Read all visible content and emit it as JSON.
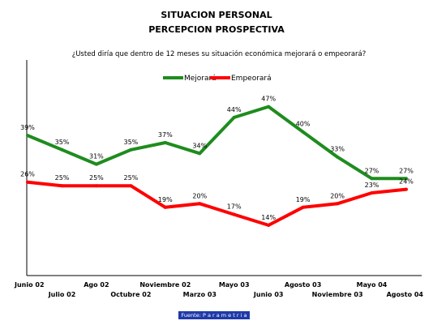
{
  "chart_data": {
    "type": "line",
    "title_lines": [
      "SITUACION PERSONAL",
      "PERCEPCION PROSPECTIVA"
    ],
    "subtitle": "¿Usted diría que dentro de 12 meses su situación económica mejorará o empeorará?",
    "categories": [
      "Junio 02",
      "Julio 02",
      "Ago 02",
      "Octubre 02",
      "Noviembre 02",
      "Marzo 03",
      "Mayo 03",
      "Junio 03",
      "Agosto 03",
      "Noviembre 03",
      "Mayo 04",
      "Agosto 04"
    ],
    "series": [
      {
        "name": "Mejorará",
        "color": "#1e8c1e",
        "values": [
          39,
          35,
          31,
          35,
          37,
          34,
          44,
          47,
          40,
          33,
          27,
          27
        ],
        "labels": [
          "39%",
          "35%",
          "31%",
          "35%",
          "37%",
          "34%",
          "44%",
          "47%",
          "40%",
          "33%",
          "27%",
          "27%"
        ]
      },
      {
        "name": "Empeorará",
        "color": "#ff0000",
        "values": [
          26,
          25,
          25,
          25,
          19,
          20,
          17,
          14,
          19,
          20,
          23,
          24
        ],
        "labels": [
          "26%",
          "25%",
          "25%",
          "25%",
          "19%",
          "20%",
          "17%",
          "14%",
          "19%",
          "20%",
          "23%",
          "24%"
        ]
      }
    ],
    "ylim": [
      0,
      60
    ],
    "legend_position": "top-center",
    "grid": false
  },
  "footer": {
    "source": "Fuente:  P a r a m e t r i a"
  }
}
